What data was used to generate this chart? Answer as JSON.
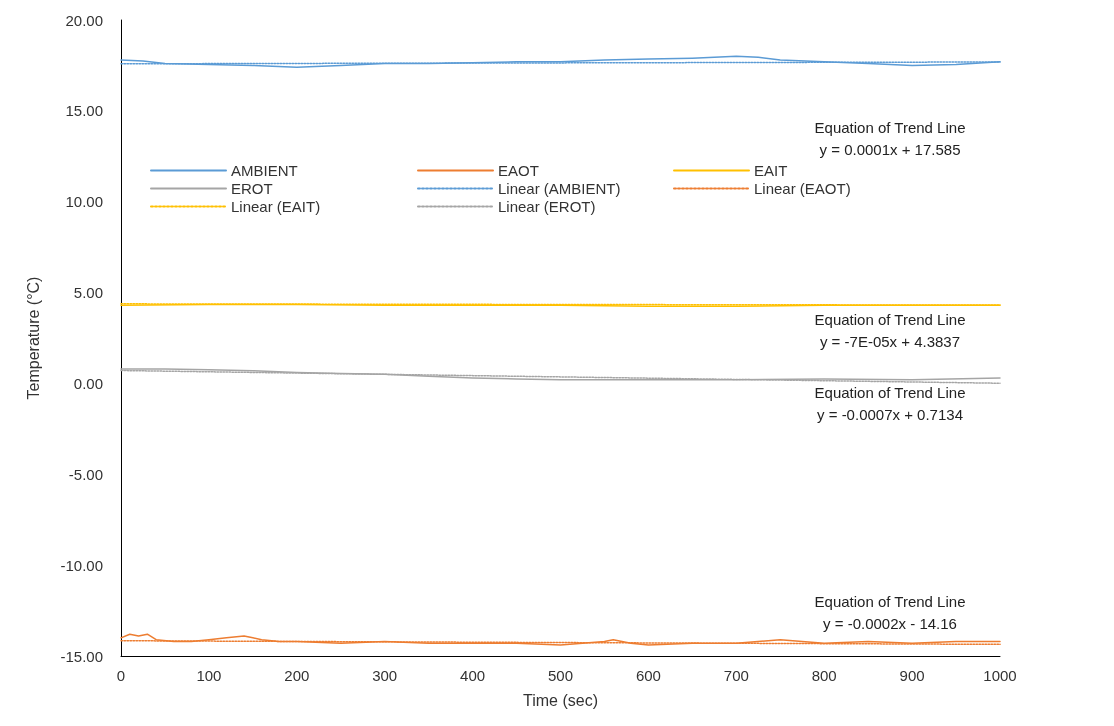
{
  "chart_data": {
    "type": "line",
    "xlabel": "Time (sec)",
    "ylabel": "Temperature (°C)",
    "xlim": [
      0,
      1000
    ],
    "xticks": [
      0,
      100,
      200,
      300,
      400,
      500,
      600,
      700,
      800,
      900,
      1000
    ],
    "ylim": [
      -15,
      20
    ],
    "yticks": [
      {
        "value": -15,
        "label": "-15.00"
      },
      {
        "value": -10,
        "label": "-10.00"
      },
      {
        "value": -5,
        "label": "-5.00"
      },
      {
        "value": 0,
        "label": "0.00"
      },
      {
        "value": 5,
        "label": "5.00"
      },
      {
        "value": 10,
        "label": "10.00"
      },
      {
        "value": 15,
        "label": "15.00"
      },
      {
        "value": 20,
        "label": "20.00"
      }
    ],
    "grid": false,
    "legend": "top left",
    "marker": "none",
    "series": [
      {
        "name": "AMBIENT",
        "color": "#5b9bd5",
        "line_style": "solid",
        "x": [
          0,
          25,
          50,
          100,
          150,
          200,
          250,
          300,
          350,
          400,
          450,
          500,
          550,
          600,
          650,
          700,
          725,
          750,
          800,
          850,
          900,
          950,
          1000
        ],
        "values": [
          17.8,
          17.75,
          17.6,
          17.55,
          17.5,
          17.4,
          17.5,
          17.6,
          17.6,
          17.65,
          17.7,
          17.7,
          17.8,
          17.85,
          17.9,
          18.0,
          17.95,
          17.8,
          17.7,
          17.6,
          17.5,
          17.55,
          17.7
        ]
      },
      {
        "name": "EAOT",
        "color": "#ed7d31",
        "line_style": "solid",
        "x": [
          0,
          10,
          20,
          30,
          40,
          60,
          80,
          100,
          120,
          140,
          150,
          160,
          180,
          200,
          250,
          300,
          350,
          400,
          450,
          500,
          550,
          560,
          580,
          600,
          650,
          700,
          750,
          800,
          850,
          900,
          950,
          1000
        ],
        "values": [
          -14.0,
          -13.8,
          -13.9,
          -13.8,
          -14.1,
          -14.2,
          -14.2,
          -14.1,
          -14.0,
          -13.9,
          -14.0,
          -14.1,
          -14.2,
          -14.2,
          -14.3,
          -14.2,
          -14.3,
          -14.3,
          -14.3,
          -14.4,
          -14.2,
          -14.1,
          -14.3,
          -14.4,
          -14.3,
          -14.3,
          -14.1,
          -14.3,
          -14.2,
          -14.3,
          -14.2,
          -14.2
        ]
      },
      {
        "name": "EAIT",
        "color": "#ffc000",
        "line_style": "solid",
        "x": [
          0,
          100,
          200,
          300,
          400,
          500,
          600,
          700,
          800,
          900,
          1000
        ],
        "values": [
          4.3,
          4.35,
          4.35,
          4.3,
          4.3,
          4.3,
          4.25,
          4.25,
          4.3,
          4.3,
          4.3
        ]
      },
      {
        "name": "EROT",
        "color": "#a5a5a5",
        "line_style": "solid",
        "x": [
          0,
          50,
          100,
          150,
          200,
          250,
          300,
          350,
          400,
          450,
          500,
          600,
          700,
          800,
          900,
          1000
        ],
        "values": [
          0.8,
          0.8,
          0.75,
          0.7,
          0.6,
          0.55,
          0.5,
          0.4,
          0.3,
          0.25,
          0.2,
          0.2,
          0.2,
          0.25,
          0.2,
          0.3
        ]
      },
      {
        "name": "Linear (AMBIENT)",
        "color": "#5b9bd5",
        "line_style": "dotted",
        "x": [
          0,
          1000
        ],
        "values": [
          17.59,
          17.69
        ]
      },
      {
        "name": "Linear (EAOT)",
        "color": "#ed7d31",
        "line_style": "dotted",
        "x": [
          0,
          1000
        ],
        "values": [
          -14.16,
          -14.36
        ]
      },
      {
        "name": "Linear (EAIT)",
        "color": "#ffc000",
        "line_style": "dotted",
        "x": [
          0,
          1000
        ],
        "values": [
          4.38,
          4.31
        ]
      },
      {
        "name": "Linear (EROT)",
        "color": "#a5a5a5",
        "line_style": "dotted",
        "x": [
          0,
          1000
        ],
        "values": [
          0.71,
          0.01
        ]
      }
    ],
    "annotations": [
      "Equation of Trend Line\ny = 0.0001x + 17.585",
      "Equation of Trend Line\ny = -7E-05x + 4.3837",
      "Equation of Trend Line\ny = -0.0007x + 0.7134",
      "Equation of Trend Line\ny = -0.0002x - 14.16"
    ]
  }
}
